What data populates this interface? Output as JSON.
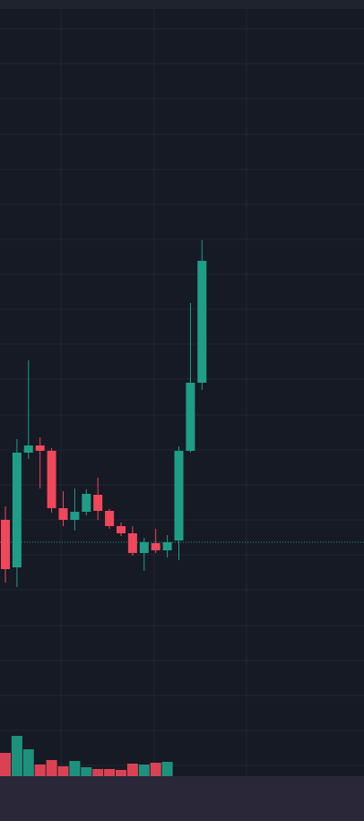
{
  "chart_data": {
    "type": "candlestick",
    "open": [
      336,
      283,
      411,
      419,
      413,
      349,
      336,
      345,
      364,
      346,
      329,
      321,
      299,
      310,
      302,
      313,
      413,
      489
    ],
    "close": [
      281,
      411,
      419,
      413,
      349,
      336,
      345,
      365,
      346,
      329,
      321,
      299,
      311,
      302,
      311,
      413,
      489,
      625
    ],
    "high": [
      351,
      426,
      514,
      428,
      416,
      368,
      371,
      370,
      383,
      348,
      333,
      329,
      316,
      326,
      319,
      418,
      578,
      648
    ],
    "low": [
      266,
      261,
      404,
      371,
      344,
      329,
      324,
      341,
      336,
      326,
      318,
      296,
      279,
      299,
      294,
      291,
      411,
      481
    ],
    "volume": [
      26,
      45,
      30,
      13,
      18,
      11,
      17,
      10,
      8,
      8,
      7,
      14,
      13,
      15,
      16,
      null,
      null,
      null
    ],
    "up_color": "#1f9e87",
    "down_color": "#f0475a",
    "ylim": [
      0,
      916
    ],
    "yticks": [
      884,
      845,
      806,
      766,
      727,
      688,
      649,
      610,
      571,
      532,
      493,
      453,
      414,
      375,
      336,
      297,
      258,
      218,
      179,
      140,
      101,
      62
    ],
    "price_line": 311,
    "grid": true
  }
}
